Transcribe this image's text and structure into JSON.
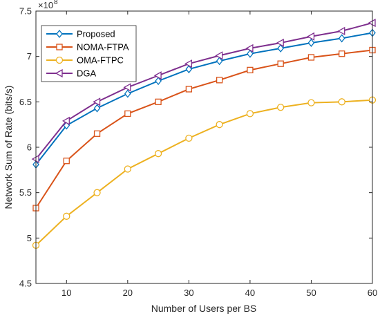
{
  "chart_data": {
    "type": "line",
    "title": "",
    "xlabel": "Number of Users per BS",
    "ylabel": "Network Sum of Rate (bits/s)",
    "y_exponent_base": "×10",
    "y_exponent_power": "8",
    "xlim": [
      5,
      60
    ],
    "ylim": [
      4.5,
      7.5
    ],
    "x_ticks": [
      10,
      20,
      30,
      40,
      50,
      60
    ],
    "y_ticks": [
      4.5,
      5,
      5.5,
      6,
      6.5,
      7,
      7.5
    ],
    "grid": false,
    "legend_position": "top-left",
    "x": [
      5,
      10,
      15,
      20,
      25,
      30,
      35,
      40,
      45,
      50,
      55,
      60
    ],
    "series": [
      {
        "name": "Proposed",
        "color": "#0072BD",
        "marker": "diamond",
        "values": [
          5.81,
          6.24,
          6.43,
          6.59,
          6.73,
          6.86,
          6.95,
          7.03,
          7.09,
          7.15,
          7.2,
          7.26
        ]
      },
      {
        "name": "NOMA-FTPA",
        "color": "#D95319",
        "marker": "square",
        "values": [
          5.33,
          5.85,
          6.15,
          6.37,
          6.5,
          6.64,
          6.74,
          6.85,
          6.92,
          6.99,
          7.03,
          7.07
        ]
      },
      {
        "name": "OMA-FTPC",
        "color": "#EDB120",
        "marker": "circle",
        "values": [
          4.92,
          5.24,
          5.5,
          5.76,
          5.93,
          6.1,
          6.25,
          6.37,
          6.44,
          6.49,
          6.5,
          6.52
        ]
      },
      {
        "name": "DGA",
        "color": "#7E2F8E",
        "marker": "triangle-left",
        "values": [
          5.87,
          6.29,
          6.5,
          6.66,
          6.79,
          6.92,
          7.01,
          7.09,
          7.15,
          7.22,
          7.28,
          7.37
        ]
      }
    ]
  }
}
